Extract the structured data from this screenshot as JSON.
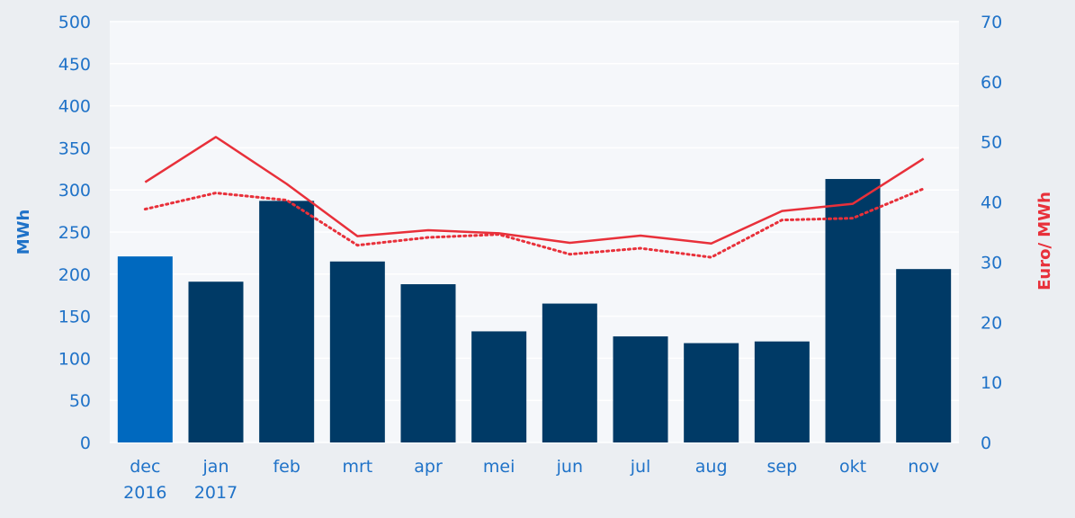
{
  "chart_data": {
    "type": "bar",
    "categories": [
      [
        "dec",
        "2016"
      ],
      [
        "jan",
        "2017"
      ],
      [
        "feb"
      ],
      [
        "mrt"
      ],
      [
        "apr"
      ],
      [
        "mei"
      ],
      [
        "jun"
      ],
      [
        "jul"
      ],
      [
        "aug"
      ],
      [
        "sep"
      ],
      [
        "okt"
      ],
      [
        "nov"
      ]
    ],
    "left_axis": {
      "label": "MWh",
      "min": 0,
      "max": 500,
      "ticks": [
        "0",
        "50",
        "100",
        "150",
        "200",
        "250",
        "300",
        "350",
        "400",
        "450",
        "500"
      ]
    },
    "right_axis": {
      "label": "Euro/ MWh",
      "min": 0,
      "max": 70,
      "ticks": [
        "0",
        "10",
        "20",
        "30",
        "40",
        "50",
        "60",
        "70"
      ]
    },
    "bars": {
      "axis": "left",
      "values": [
        221,
        191,
        287,
        215,
        188,
        132,
        165,
        126,
        118,
        120,
        313,
        206
      ],
      "colors": [
        "#0069bf",
        "#003a66",
        "#003a66",
        "#003a66",
        "#003a66",
        "#003a66",
        "#003a66",
        "#003a66",
        "#003a66",
        "#003a66",
        "#003a66",
        "#003a66"
      ]
    },
    "lines": [
      {
        "style": "solid",
        "axis": "right",
        "color": "#e8303a",
        "values": [
          43.3,
          50.8,
          43.0,
          34.3,
          35.3,
          34.8,
          33.2,
          34.4,
          33.1,
          38.5,
          39.7,
          47.2
        ]
      },
      {
        "style": "dotted",
        "axis": "right",
        "color": "#e8303a",
        "values": [
          38.8,
          41.5,
          40.3,
          32.8,
          34.1,
          34.6,
          31.3,
          32.3,
          30.8,
          37.0,
          37.3,
          42.2
        ]
      }
    ],
    "grid": true,
    "colors": {
      "page_background": "#ebeef2",
      "plot_background": "#f5f7fa",
      "grid": "#ffffff",
      "left_axis_text": "#1f72c8",
      "left_axis_title": "#1f72c8",
      "right_axis_text": "#1f72c8",
      "right_axis_title": "#e8303a",
      "category_text": "#1f72c8"
    }
  }
}
